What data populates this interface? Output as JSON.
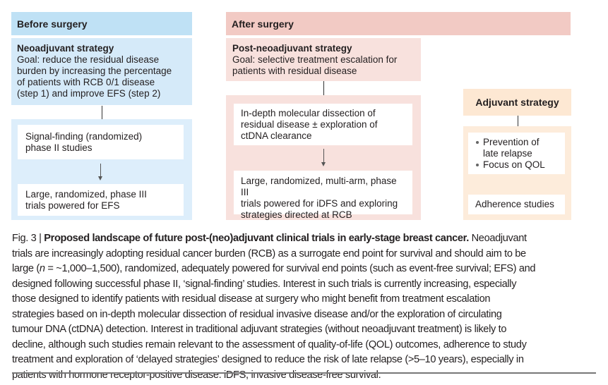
{
  "before": {
    "header": "Before surgery",
    "strategy_title": "Neoadjuvant strategy",
    "strategy_goal_lines": [
      "Goal: reduce the residual disease",
      "burden by increasing the percentage",
      "of patients with RCB 0/1 disease",
      "(step 1) and improve EFS (step 2)"
    ],
    "step1_lines": [
      "Signal-finding (randomized)",
      "phase II studies"
    ],
    "step2_lines": [
      "Large, randomized, phase III",
      "trials powered for EFS"
    ]
  },
  "after": {
    "header": "After surgery",
    "strategy_title": "Post-neoadjuvant strategy",
    "strategy_goal_lines": [
      "Goal: selective treatment escalation for",
      "patients with residual disease"
    ],
    "step1_lines": [
      "In-depth molecular dissection of",
      "residual disease ± exploration of",
      "ctDNA clearance"
    ],
    "step2_lines": [
      "Large, randomized, multi-arm, phase III",
      "trials powered for iDFS and exploring",
      "strategies directed at RCB"
    ]
  },
  "adjuvant": {
    "title": "Adjuvant strategy",
    "bullets": [
      "Prevention of late relapse",
      "Focus on QOL"
    ],
    "bullet1_lines": [
      "Prevention of",
      "late relapse"
    ],
    "adherence": "Adherence studies"
  },
  "caption": {
    "fig_label": "Fig. 3 | ",
    "title": "Proposed landscape of future post-(neo)adjuvant clinical trials in early-stage breast cancer.",
    "line1_tail": " Neoadjuvant",
    "line2": "trials are increasingly adopting residual cancer burden (RCB) as a surrogate end point for survival and should aim to be",
    "line3_a": "large (",
    "line3_n": "n",
    "line3_b": " = ~1,000–1,500), randomized, adequately powered for survival end points (such as event-free survival; EFS) and",
    "lines_rest": [
      "designed following successful phase II, ‘signal-finding’ studies. Interest in such trials is currently increasing, especially",
      "those designed to identify patients with residual disease at surgery who might benefit from treatment escalation",
      "strategies based on in-depth molecular dissection of residual invasive disease and/or the exploration of circulating",
      "tumour DNA (ctDNA) detection. Interest in traditional adjuvant strategies (without neoadjuvant treatment) is likely to",
      "decline, although such studies remain relevant to the assessment of quality-of-life (QOL) outcomes, adherence to study",
      "treatment and exploration of ‘delayed strategies’ designed to reduce the risk of late relapse (>5–10 years), especially in",
      "patients with hormone receptor-positive disease. iDFS, invasive disease-free survival."
    ]
  },
  "colors": {
    "before_header": "#bfe1f5",
    "before_box": "#d5eaf9",
    "before_lower": "#ddeefb",
    "after_header": "#f2cac4",
    "after_box": "#f8e1dd",
    "adjuvant": "#fde8d3"
  }
}
